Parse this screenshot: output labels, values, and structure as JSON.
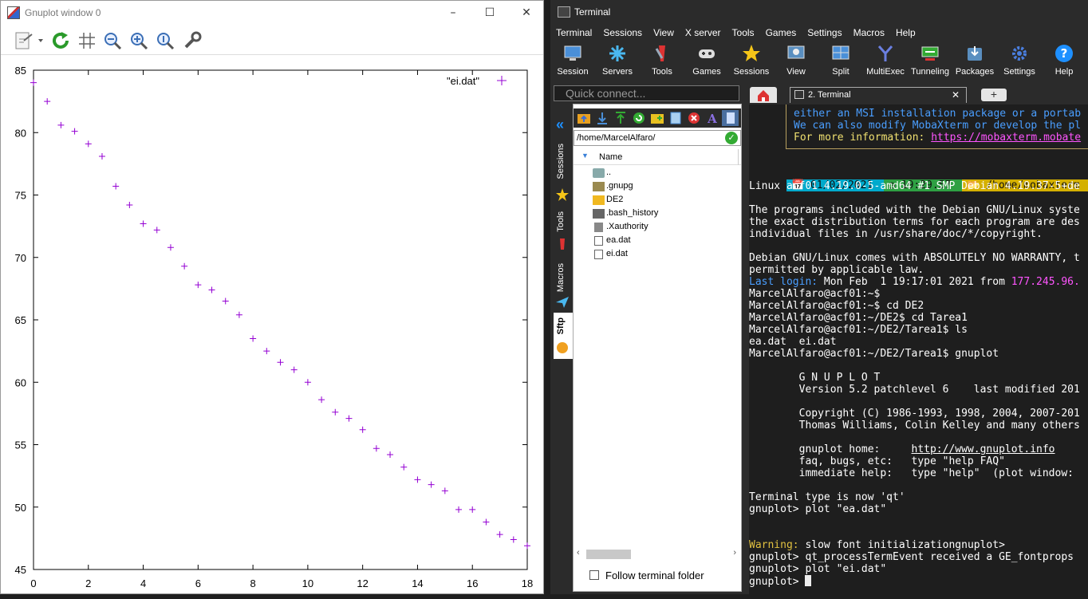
{
  "gnuplot": {
    "title": "Gnuplot window 0",
    "toolbar_icons": [
      "export-icon",
      "replot-icon",
      "grid-icon",
      "zoom-out-icon",
      "zoom-in-icon",
      "zoom-reset-icon",
      "settings-icon"
    ]
  },
  "chart_data": {
    "type": "scatter",
    "series": [
      {
        "name": "\"ei.dat\"",
        "color": "#9400d3",
        "marker": "+",
        "x": [
          0,
          0.5,
          1,
          1.5,
          2,
          2.5,
          3,
          3.5,
          4,
          4.5,
          5,
          5.5,
          6,
          6.5,
          7,
          7.5,
          8,
          8.5,
          9,
          9.5,
          10,
          10.5,
          11,
          11.5,
          12,
          12.5,
          13,
          13.5,
          14,
          14.5,
          15,
          15.5,
          16,
          16.5,
          17,
          17.5,
          18
        ],
        "y": [
          84.0,
          82.5,
          80.6,
          80.1,
          79.1,
          78.1,
          75.7,
          74.2,
          72.7,
          72.2,
          70.8,
          69.3,
          67.8,
          67.4,
          66.5,
          65.4,
          63.5,
          62.5,
          61.6,
          61.0,
          60.0,
          58.6,
          57.6,
          57.1,
          56.2,
          54.7,
          54.2,
          53.2,
          52.2,
          51.8,
          51.3,
          49.8,
          49.8,
          48.8,
          47.8,
          47.4,
          46.9
        ]
      }
    ],
    "xlim": [
      0,
      18
    ],
    "ylim": [
      45,
      85
    ],
    "xticks": [
      "0",
      "2",
      "4",
      "6",
      "8",
      "10",
      "12",
      "14",
      "16",
      "18"
    ],
    "yticks": [
      "45",
      "50",
      "55",
      "60",
      "65",
      "70",
      "75",
      "80",
      "85"
    ],
    "legend": "top-right",
    "grid": false
  },
  "terminal": {
    "title": "Terminal",
    "menu": [
      "Terminal",
      "Sessions",
      "View",
      "X server",
      "Tools",
      "Games",
      "Settings",
      "Macros",
      "Help"
    ],
    "ribbon": [
      {
        "label": "Session",
        "icon": "session-icon"
      },
      {
        "label": "Servers",
        "icon": "servers-icon"
      },
      {
        "label": "Tools",
        "icon": "tools-icon"
      },
      {
        "label": "Games",
        "icon": "games-icon"
      },
      {
        "label": "Sessions",
        "icon": "star-icon"
      },
      {
        "label": "View",
        "icon": "view-icon"
      },
      {
        "label": "Split",
        "icon": "split-icon"
      },
      {
        "label": "MultiExec",
        "icon": "multiexec-icon"
      },
      {
        "label": "Tunneling",
        "icon": "tunneling-icon"
      },
      {
        "label": "Packages",
        "icon": "packages-icon"
      },
      {
        "label": "Settings",
        "icon": "gear-icon"
      },
      {
        "label": "Help",
        "icon": "help-icon"
      }
    ],
    "quick_connect_placeholder": "Quick connect...",
    "tab_label": "2. Terminal",
    "side_tabs": [
      "Sessions",
      "Tools",
      "Macros",
      "Sftp"
    ],
    "sftp": {
      "path": "/home/MarcelAlfaro/",
      "column_name": "Name",
      "files": [
        {
          "name": "..",
          "type": "parent"
        },
        {
          "name": ".gnupg",
          "type": "folder-dark"
        },
        {
          "name": "DE2",
          "type": "folder"
        },
        {
          "name": ".bash_history",
          "type": "file-dark"
        },
        {
          "name": ".Xauthority",
          "type": "file-dark"
        },
        {
          "name": "ea.dat",
          "type": "file"
        },
        {
          "name": "ei.dat",
          "type": "file"
        }
      ],
      "follow_label": "Follow terminal folder"
    },
    "console": {
      "banner_line1": "either an MSI installation package or a portab",
      "banner_line2": "We can also modify MobaXterm or develop the pl",
      "banner_line3_prefix": "For more information: ",
      "banner_line3_link": "https://mobaxterm.mobate",
      "status_date": "01/02/2021",
      "status_time": "19:29.57",
      "status_path": "/home/mobaxterm",
      "status_tail": "s",
      "uname": "Linux acf01 4.19.0-5-amd64 #1 SMP Debian 4.19.37-5+de",
      "motd1": "The programs included with the Debian GNU/Linux syste",
      "motd2": "the exact distribution terms for each program are des",
      "motd3": "individual files in /usr/share/doc/*/copyright.",
      "motd4": "Debian GNU/Linux comes with ABSOLUTELY NO WARRANTY, t",
      "motd5": "permitted by applicable law.",
      "last_login_label": "Last login:",
      "last_login_value": " Mon Feb  1 19:17:01 2021 from ",
      "last_login_ip": "177.245.96.",
      "cmd1": "MarcelAlfaro@acf01:~$",
      "cmd2": "MarcelAlfaro@acf01:~$ cd DE2",
      "cmd3": "MarcelAlfaro@acf01:~/DE2$ cd Tarea1",
      "cmd4": "MarcelAlfaro@acf01:~/DE2/Tarea1$ ls",
      "ls_out": "ea.dat  ei.dat",
      "cmd5": "MarcelAlfaro@acf01:~/DE2/Tarea1$ gnuplot",
      "gp1": "        G N U P L O T",
      "gp2": "        Version 5.2 patchlevel 6    last modified 201",
      "gp3": "        Copyright (C) 1986-1993, 1998, 2004, 2007-201",
      "gp4": "        Thomas Williams, Colin Kelley and many others",
      "gp5_prefix": "        gnuplot home:     ",
      "gp5_link": "http://www.gnuplot.info",
      "gp6": "        faq, bugs, etc:   type \"help FAQ\"",
      "gp7": "        immediate help:   type \"help\"  (plot window: ",
      "gp8": "Terminal type is now 'qt'",
      "gp9": "gnuplot> plot \"ea.dat\"",
      "warn_label": "Warning:",
      "warn_text": " slow font initializationgnuplot>",
      "gp10": "gnuplot> qt_processTermEvent received a GE_fontprops",
      "gp11": "gnuplot> plot \"ei.dat\"",
      "gp12": "gnuplot> "
    },
    "colors": {
      "accent": "#1e90ff",
      "link": "#ff55ff",
      "banner": "#4a9eff",
      "warning": "#e0c040",
      "status_cyan": "#00aacc",
      "status_green": "#2ea043",
      "status_yellow": "#d4b000"
    }
  }
}
